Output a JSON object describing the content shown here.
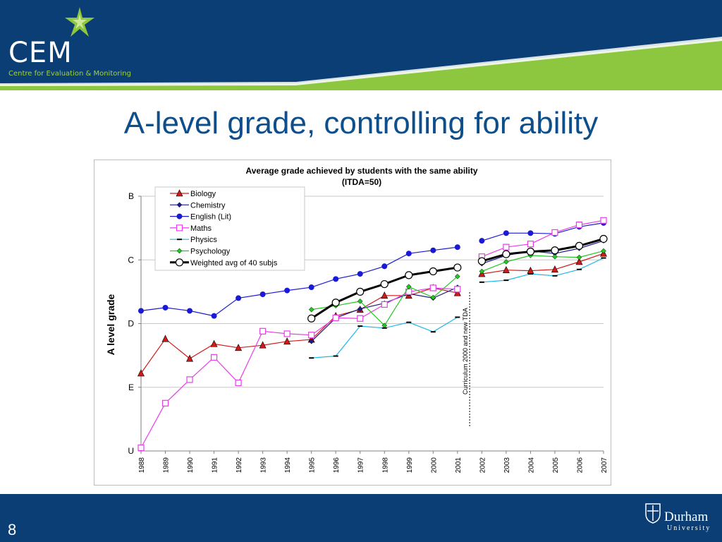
{
  "header": {
    "logo_text": "CEM",
    "logo_subtitle": "Centre for Evaluation & Monitoring",
    "band_color": "#0b3e74",
    "accent_color": "#8dc63f"
  },
  "slide": {
    "title": "A-level grade, controlling for ability",
    "page_number": "8"
  },
  "footer": {
    "university_name": "Durham",
    "university_sub": "University"
  },
  "chart_data": {
    "type": "line",
    "title": "Average grade achieved by students with the same ability",
    "subtitle": "(ITDA=50)",
    "ylabel": "A level grade",
    "xlabel": "",
    "y_tick_labels": [
      "U",
      "E",
      "D",
      "C",
      "B"
    ],
    "y_scale": "U=0, E=1, D=2, C=3, B=4",
    "ylim": [
      0,
      4
    ],
    "x": [
      "1988",
      "1989",
      "1990",
      "1991",
      "1992",
      "1993",
      "1994",
      "1995",
      "1996",
      "1997",
      "1998",
      "1999",
      "2000",
      "2001",
      "2002",
      "2003",
      "2004",
      "2005",
      "2006",
      "2007"
    ],
    "grid": "horizontal",
    "legend_position": "top-left",
    "annotation": {
      "text": "Curriculum 2000 and new TDA",
      "between": [
        "2001",
        "2002"
      ]
    },
    "series": [
      {
        "name": "Biology",
        "color": "#d11a1a",
        "marker": "triangle",
        "values": [
          1.22,
          1.76,
          1.45,
          1.68,
          1.62,
          1.66,
          1.72,
          1.75,
          2.12,
          2.22,
          2.44,
          2.44,
          2.56,
          2.48,
          2.78,
          2.84,
          2.83,
          2.85,
          2.97,
          3.1
        ]
      },
      {
        "name": "Chemistry",
        "color": "#1a1a8c",
        "marker": "diamond",
        "values": [
          null,
          null,
          null,
          null,
          null,
          null,
          null,
          1.72,
          2.09,
          2.23,
          2.32,
          2.47,
          2.4,
          2.57,
          2.94,
          3.07,
          3.14,
          3.1,
          3.18,
          3.3
        ]
      },
      {
        "name": "English (Lit)",
        "color": "#1a1ad6",
        "marker": "circle",
        "values": [
          2.2,
          2.25,
          2.2,
          2.12,
          2.4,
          2.46,
          2.52,
          2.57,
          2.7,
          2.78,
          2.9,
          3.1,
          3.15,
          3.2,
          3.3,
          3.42,
          3.42,
          3.41,
          3.52,
          3.58
        ]
      },
      {
        "name": "Maths",
        "color": "#e83de8",
        "marker": "square",
        "values": [
          0.05,
          0.75,
          1.12,
          1.47,
          1.07,
          1.88,
          1.84,
          1.82,
          2.09,
          2.08,
          2.3,
          2.5,
          2.56,
          2.54,
          3.05,
          3.2,
          3.25,
          3.43,
          3.55,
          3.62
        ]
      },
      {
        "name": "Physics",
        "color": "#1ab8e8",
        "marker": "dash",
        "values": [
          null,
          null,
          null,
          null,
          null,
          null,
          null,
          1.46,
          1.49,
          1.96,
          1.93,
          2.02,
          1.87,
          2.1,
          2.65,
          2.68,
          2.78,
          2.75,
          2.85,
          3.03
        ]
      },
      {
        "name": "Psychology",
        "color": "#22c722",
        "marker": "diamond",
        "values": [
          null,
          null,
          null,
          null,
          null,
          null,
          null,
          2.22,
          2.28,
          2.35,
          1.97,
          2.58,
          2.41,
          2.74,
          2.82,
          2.97,
          3.07,
          3.05,
          3.04,
          3.14
        ]
      },
      {
        "name": "Weighted avg of 40 subjs",
        "color": "#000000",
        "marker": "circle-open",
        "values": [
          null,
          null,
          null,
          null,
          null,
          null,
          null,
          2.08,
          2.33,
          2.5,
          2.62,
          2.76,
          2.82,
          2.88,
          2.98,
          3.09,
          3.13,
          3.15,
          3.22,
          3.33
        ]
      }
    ]
  }
}
